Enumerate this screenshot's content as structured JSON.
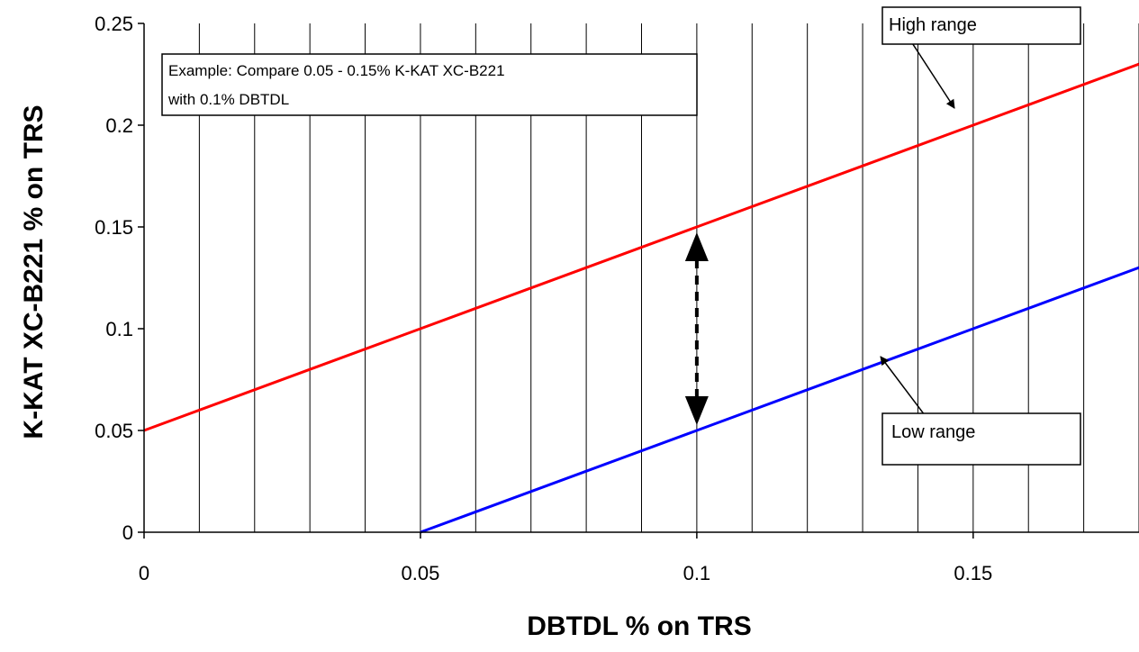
{
  "chart_data": {
    "type": "line",
    "xlabel": "DBTDL % on TRS",
    "ylabel": "K-KAT XC-B221 % on TRS",
    "xlim": [
      0,
      0.18
    ],
    "ylim": [
      0,
      0.25
    ],
    "x_ticks": [
      0,
      0.05,
      0.1,
      0.15
    ],
    "x_tick_labels": [
      "0",
      "0.05",
      "0.1",
      "0.15"
    ],
    "y_ticks": [
      0,
      0.05,
      0.1,
      0.15,
      0.2,
      0.25
    ],
    "y_tick_labels": [
      "0",
      "0.05",
      "0.1",
      "0.15",
      "0.2",
      "0.25"
    ],
    "x_grid_step": 0.01,
    "grid": "vertical",
    "series": [
      {
        "name": "High range",
        "color": "#ff0000",
        "x": [
          0,
          0.05,
          0.1,
          0.15,
          0.18
        ],
        "y": [
          0.05,
          0.1,
          0.15,
          0.2,
          0.23
        ]
      },
      {
        "name": "Low range",
        "color": "#0000ff",
        "x": [
          0.05,
          0.1,
          0.15,
          0.18
        ],
        "y": [
          0,
          0.05,
          0.1,
          0.13
        ]
      }
    ],
    "annotations": {
      "example_line1": "Example: Compare 0.05 - 0.15% K-KAT XC-B221",
      "example_line2": "with 0.1% DBTDL",
      "compare_arrow": {
        "x": 0.1,
        "y_from": 0.05,
        "y_to": 0.15,
        "style": "dashed double-headed"
      },
      "high_label": "High range",
      "low_label": "Low range"
    }
  }
}
